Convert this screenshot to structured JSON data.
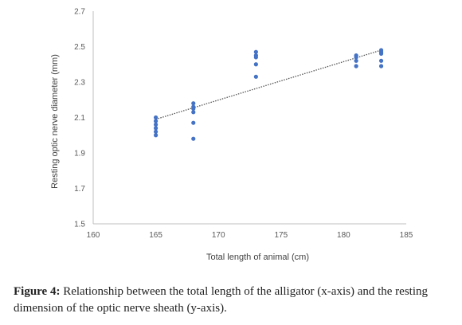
{
  "chart_data": {
    "type": "scatter",
    "xlabel": "Total length of animal (cm)",
    "ylabel": "Resting optic nerve diameter (mm)",
    "xlim": [
      160,
      185
    ],
    "ylim": [
      1.5,
      2.7
    ],
    "x_ticks": [
      "160",
      "165",
      "170",
      "175",
      "180",
      "185"
    ],
    "y_ticks": [
      "1.5",
      "1.7",
      "1.9",
      "2.1",
      "2.3",
      "2.5",
      "2.7"
    ],
    "grid": false,
    "trendline": {
      "style": "dotted",
      "type": "linear",
      "from": [
        165,
        2.09
      ],
      "to": [
        183,
        2.48
      ]
    },
    "series": [
      {
        "color": "#4472c4",
        "points": [
          [
            165,
            2.1
          ],
          [
            165,
            2.08
          ],
          [
            165,
            2.06
          ],
          [
            165,
            2.04
          ],
          [
            165,
            2.02
          ],
          [
            165,
            2.0
          ],
          [
            168,
            2.18
          ],
          [
            168,
            2.16
          ],
          [
            168,
            2.15
          ],
          [
            168,
            2.13
          ],
          [
            168,
            2.07
          ],
          [
            168,
            1.98
          ],
          [
            173,
            2.47
          ],
          [
            173,
            2.45
          ],
          [
            173,
            2.44
          ],
          [
            173,
            2.4
          ],
          [
            173,
            2.33
          ],
          [
            181,
            2.45
          ],
          [
            181,
            2.44
          ],
          [
            181,
            2.42
          ],
          [
            181,
            2.39
          ],
          [
            183,
            2.48
          ],
          [
            183,
            2.47
          ],
          [
            183,
            2.46
          ],
          [
            183,
            2.42
          ],
          [
            183,
            2.39
          ]
        ]
      }
    ]
  },
  "caption": {
    "label": "Figure 4:",
    "text": " Relationship between the total length of the alligator (x-axis) and the resting dimension of the optic nerve sheath (y-axis)."
  }
}
